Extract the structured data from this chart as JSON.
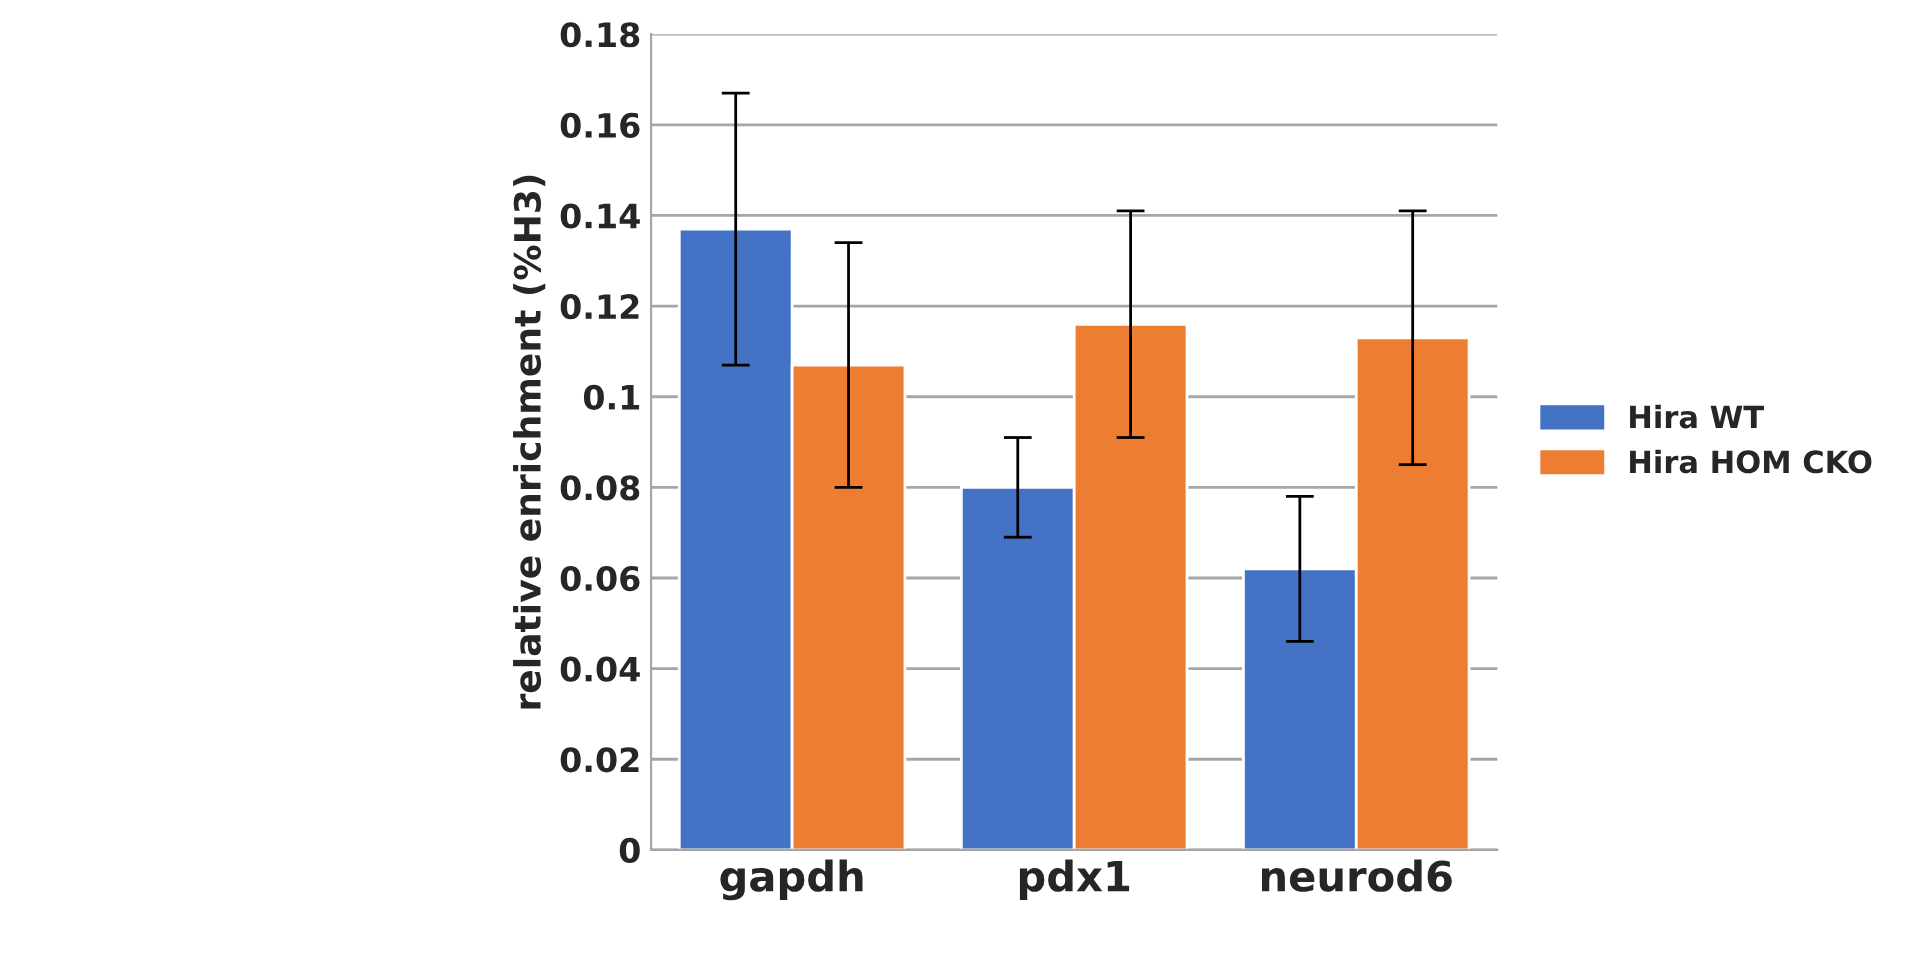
{
  "chart_data": {
    "type": "bar",
    "ylabel": "relative enrichment (%H3)",
    "categories": [
      "gapdh",
      "pdx1",
      "neurod6"
    ],
    "series": [
      {
        "name": "Hira WT",
        "color": "#4472c4",
        "values": [
          0.137,
          0.08,
          0.062
        ],
        "errors": [
          0.03,
          0.011,
          0.016
        ]
      },
      {
        "name": "Hira HOM CKO",
        "color": "#ed7d31",
        "values": [
          0.107,
          0.116,
          0.113
        ],
        "errors": [
          0.027,
          0.025,
          0.028
        ]
      }
    ],
    "ylim": [
      0,
      0.18
    ],
    "yticks": [
      0,
      0.02,
      0.04,
      0.06,
      0.08,
      {
        "value": 0.1,
        "label": "0.1"
      },
      0.12,
      0.14,
      0.16,
      0.18
    ],
    "grid": "y",
    "legend": "right"
  }
}
